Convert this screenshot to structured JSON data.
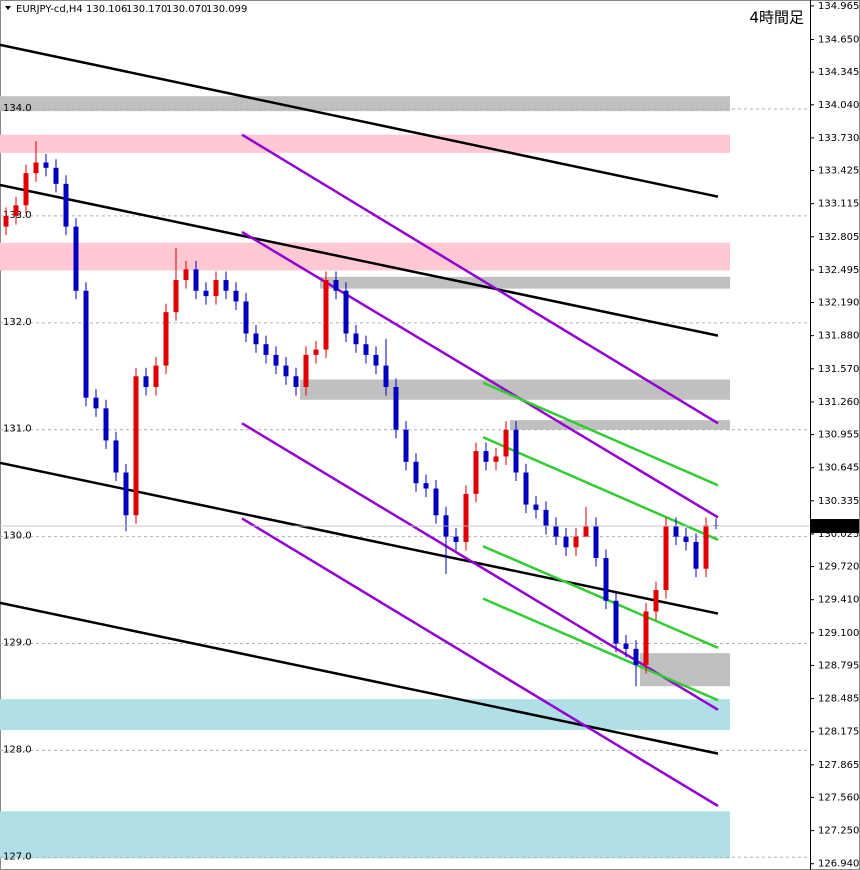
{
  "chart_data": {
    "type": "candlestick",
    "symbol": "EURJPY-cd,H4",
    "last_bar_labels": [
      "130.106",
      "130.170",
      "130.070",
      "130.099"
    ],
    "title": "4時間足",
    "open": [
      132.9,
      133.0,
      133.1,
      133.4,
      133.5,
      133.45,
      133.3,
      132.9,
      132.3,
      131.3,
      131.2,
      130.9,
      130.6,
      130.2,
      131.5,
      131.4,
      131.6,
      132.1,
      132.4,
      132.5,
      132.3,
      132.25,
      132.4,
      132.3,
      132.2,
      131.9,
      131.8,
      131.7,
      131.6,
      131.5,
      131.4,
      131.7,
      131.75,
      132.4,
      132.3,
      131.9,
      131.8,
      131.7,
      131.6,
      131.4,
      131.0,
      130.7,
      130.5,
      130.45,
      130.2,
      130.0,
      129.95,
      130.4,
      130.8,
      130.7,
      130.75,
      131.0,
      130.6,
      130.3,
      130.25,
      130.1,
      130.0,
      129.9,
      130.0,
      130.1,
      129.8,
      129.4,
      129.0,
      128.95,
      128.8,
      129.3,
      129.5,
      130.1,
      130.0,
      129.95,
      129.7,
      130.106
    ],
    "high": [
      133.08,
      133.18,
      133.48,
      133.7,
      133.58,
      133.53,
      133.38,
      132.98,
      132.38,
      131.38,
      131.28,
      130.98,
      130.68,
      131.58,
      131.58,
      131.68,
      132.18,
      132.7,
      132.58,
      132.58,
      132.38,
      132.48,
      132.48,
      132.38,
      132.28,
      131.98,
      131.88,
      131.78,
      131.68,
      131.58,
      131.78,
      131.83,
      132.48,
      132.48,
      132.38,
      131.98,
      131.88,
      131.78,
      131.85,
      131.48,
      131.08,
      130.78,
      130.58,
      130.53,
      130.28,
      130.08,
      130.48,
      130.88,
      130.88,
      130.83,
      131.08,
      131.08,
      130.68,
      130.38,
      130.33,
      130.18,
      130.08,
      130.08,
      130.28,
      130.18,
      129.88,
      129.48,
      129.08,
      129.03,
      129.38,
      129.58,
      130.18,
      130.18,
      130.08,
      130.03,
      130.18,
      130.17
    ],
    "low": [
      132.82,
      132.92,
      133.02,
      133.32,
      133.37,
      133.22,
      132.82,
      132.22,
      131.22,
      131.12,
      130.82,
      130.52,
      130.05,
      130.12,
      131.32,
      131.32,
      131.52,
      132.02,
      132.32,
      132.22,
      132.17,
      132.17,
      132.22,
      132.12,
      131.82,
      131.72,
      131.62,
      131.52,
      131.42,
      131.32,
      131.32,
      131.62,
      131.67,
      132.22,
      131.82,
      131.72,
      131.62,
      131.52,
      131.32,
      130.92,
      130.62,
      130.42,
      130.37,
      130.12,
      129.65,
      129.87,
      129.87,
      130.32,
      130.62,
      130.62,
      130.67,
      130.52,
      130.22,
      130.17,
      130.02,
      129.92,
      129.82,
      129.82,
      130.02,
      129.72,
      129.32,
      128.92,
      128.87,
      128.6,
      128.72,
      129.22,
      129.42,
      129.92,
      129.87,
      129.62,
      129.62,
      130.07
    ],
    "close": [
      133.0,
      133.1,
      133.4,
      133.5,
      133.45,
      133.3,
      132.9,
      132.3,
      131.3,
      131.2,
      130.9,
      130.6,
      130.2,
      131.5,
      131.4,
      131.6,
      132.1,
      132.4,
      132.5,
      132.3,
      132.25,
      132.4,
      132.3,
      132.2,
      131.9,
      131.8,
      131.7,
      131.6,
      131.5,
      131.4,
      131.7,
      131.75,
      132.4,
      132.3,
      131.9,
      131.8,
      131.7,
      131.6,
      131.4,
      131.0,
      130.7,
      130.5,
      130.45,
      130.2,
      130.0,
      129.95,
      130.4,
      130.8,
      130.7,
      130.75,
      131.0,
      130.6,
      130.3,
      130.25,
      130.1,
      130.0,
      129.9,
      130.0,
      130.1,
      129.8,
      129.4,
      129.0,
      128.95,
      128.8,
      129.3,
      129.5,
      130.1,
      130.0,
      129.95,
      129.7,
      130.106,
      130.099
    ],
    "up_color": "#e00000",
    "down_color": "#0000c0",
    "xlim": [
      -0.6,
      80.4
    ],
    "ylim": [
      126.9,
      135.02
    ],
    "yticks": [
      134.965,
      {
        "value": 134.65,
        "label": "134.650"
      },
      134.345,
      {
        "value": 134.04,
        "label": "134.040"
      },
      {
        "value": 133.73,
        "label": "133.730"
      },
      133.425,
      133.115,
      132.805,
      132.495,
      {
        "value": 132.19,
        "label": "132.190"
      },
      {
        "value": 131.88,
        "label": "131.880"
      },
      {
        "value": 131.57,
        "label": "131.570"
      },
      {
        "value": 131.26,
        "label": "131.260"
      },
      130.955,
      130.645,
      130.335,
      130.025,
      {
        "value": 129.72,
        "label": "129.720"
      },
      {
        "value": 129.41,
        "label": "129.410"
      },
      {
        "value": 129.1,
        "label": "129.100"
      },
      128.795,
      128.485,
      128.175,
      127.865,
      {
        "value": 127.56,
        "label": "127.560"
      },
      {
        "value": 127.25,
        "label": "127.250"
      },
      {
        "value": 126.94,
        "label": "126.940"
      }
    ],
    "levels": [
      {
        "value": 134,
        "label": "134.0"
      },
      {
        "value": 133,
        "label": "133.0"
      },
      {
        "value": 132,
        "label": "132.0"
      },
      {
        "value": 131,
        "label": "131.0"
      },
      {
        "value": 130,
        "label": "130.0"
      },
      {
        "value": 129,
        "label": "129.0"
      },
      {
        "value": 128,
        "label": "128.0"
      },
      {
        "value": 127,
        "label": "127.0"
      }
    ],
    "zones": [
      {
        "low": 133.98,
        "high": 134.12,
        "from": -0.6,
        "to": 72.4,
        "color": "#c0c0c0"
      },
      {
        "low": 133.59,
        "high": 133.76,
        "from": -0.6,
        "to": 72.4,
        "color": "#ffc8d2"
      },
      {
        "low": 132.49,
        "high": 132.75,
        "from": -0.6,
        "to": 72.4,
        "color": "#ffc8d2"
      },
      {
        "low": 132.32,
        "high": 132.43,
        "from": 31.4,
        "to": 72.4,
        "color": "#c0c0c0"
      },
      {
        "low": 131.28,
        "high": 131.47,
        "from": 29.4,
        "to": 72.4,
        "color": "#c0c0c0"
      },
      {
        "low": 131.0,
        "high": 131.09,
        "from": 50.4,
        "to": 72.4,
        "color": "#c0c0c0"
      },
      {
        "low": 128.6,
        "high": 128.91,
        "from": 63.4,
        "to": 72.4,
        "color": "#c0c0c0"
      },
      {
        "low": 128.19,
        "high": 128.48,
        "from": -0.6,
        "to": 72.4,
        "color": "#b0e0e6"
      },
      {
        "low": 126.99,
        "high": 127.43,
        "from": -0.6,
        "to": 72.4,
        "color": "#b0e0e6"
      }
    ],
    "trend_lines": [
      {
        "x": [
          -0.6,
          71.2
        ],
        "y": [
          134.6,
          133.18
        ],
        "color": "#000000"
      },
      {
        "x": [
          -0.6,
          71.2
        ],
        "y": [
          133.29,
          131.88
        ],
        "color": "#000000"
      },
      {
        "x": [
          -0.6,
          71.2
        ],
        "y": [
          130.69,
          129.28
        ],
        "color": "#000000"
      },
      {
        "x": [
          -0.6,
          71.2
        ],
        "y": [
          129.38,
          127.97
        ],
        "color": "#000000"
      },
      {
        "x": [
          23.6,
          71.2
        ],
        "y": [
          133.76,
          131.06
        ],
        "color": "#9400d3"
      },
      {
        "x": [
          23.6,
          71.2
        ],
        "y": [
          132.85,
          130.18
        ],
        "color": "#9400d3"
      },
      {
        "x": [
          23.6,
          71.2
        ],
        "y": [
          131.06,
          128.38
        ],
        "color": "#9400d3"
      },
      {
        "x": [
          23.6,
          71.2
        ],
        "y": [
          130.17,
          127.48
        ],
        "color": "#9400d3"
      },
      {
        "x": [
          47.7,
          71.2
        ],
        "y": [
          131.44,
          130.48
        ],
        "color": "#32cd32"
      },
      {
        "x": [
          47.7,
          71.2
        ],
        "y": [
          130.93,
          129.97
        ],
        "color": "#32cd32"
      },
      {
        "x": [
          47.7,
          71.2
        ],
        "y": [
          129.91,
          128.96
        ],
        "color": "#32cd32"
      },
      {
        "x": [
          47.7,
          71.2
        ],
        "y": [
          129.42,
          128.47
        ],
        "color": "#32cd32"
      }
    ]
  }
}
